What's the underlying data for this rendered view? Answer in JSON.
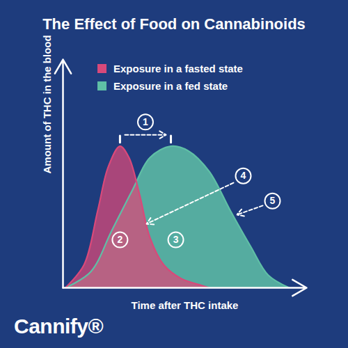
{
  "chart_data": {
    "type": "area",
    "title": "The Effect of Food on Cannabinoids",
    "x_label": "Time after THC intake",
    "y_label": "Amount of THC in the blood",
    "xlim": [
      0,
      100
    ],
    "ylim": [
      0,
      100
    ],
    "tick_labels": false,
    "legend": "top-left",
    "series": [
      {
        "name": "Exposure in a fasted state",
        "color": "#d8497a",
        "x": [
          1,
          8.6,
          14.3,
          18.6,
          23.4,
          27.1,
          31.4,
          35.7,
          41.4,
          48.6,
          57,
          60
        ],
        "values": [
          0,
          10,
          34,
          53,
          62,
          57,
          41,
          22,
          10,
          4,
          1,
          0
        ]
      },
      {
        "name": "Exposure in a fed state",
        "color": "#5fbfa6",
        "x": [
          1,
          11.4,
          20,
          28.6,
          35.7,
          44.3,
          51.4,
          60,
          68.6,
          77.1,
          84.3,
          92.9
        ],
        "values": [
          0,
          7,
          25,
          43,
          57,
          62,
          60,
          51,
          34,
          18,
          5.5,
          0
        ]
      }
    ],
    "annotations": [
      "1",
      "2",
      "3",
      "4",
      "5"
    ],
    "logo": "Cannify®"
  }
}
